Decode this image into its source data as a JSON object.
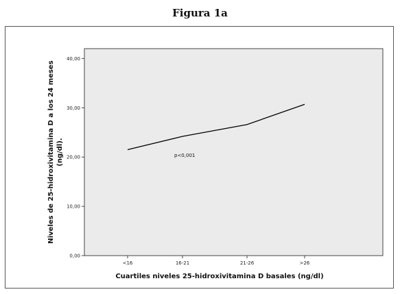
{
  "figure_title": "Figura 1a",
  "chart_data": {
    "type": "line",
    "categories": [
      "<16",
      "16-21",
      "21-26",
      ">26"
    ],
    "series": [
      {
        "values": [
          21.5,
          24.2,
          26.6,
          30.7
        ]
      }
    ],
    "xlabel": "Cuartiles niveles 25-hidroxivitamina D basales (ng/dl)",
    "ylabel_lines": [
      "Niveles de 25-hidroxivitamina D a los 24 meses",
      "(ng/dl)."
    ],
    "ylim": [
      0,
      42
    ],
    "yticks": [
      0,
      10,
      20,
      30,
      40
    ],
    "ytick_labels": [
      "0,00",
      "10,00",
      "20,00",
      "30,00",
      "40,00"
    ],
    "annotation": "p<0,001",
    "grid": false,
    "plot_background": "#ebebeb",
    "line_color": "#000000"
  }
}
